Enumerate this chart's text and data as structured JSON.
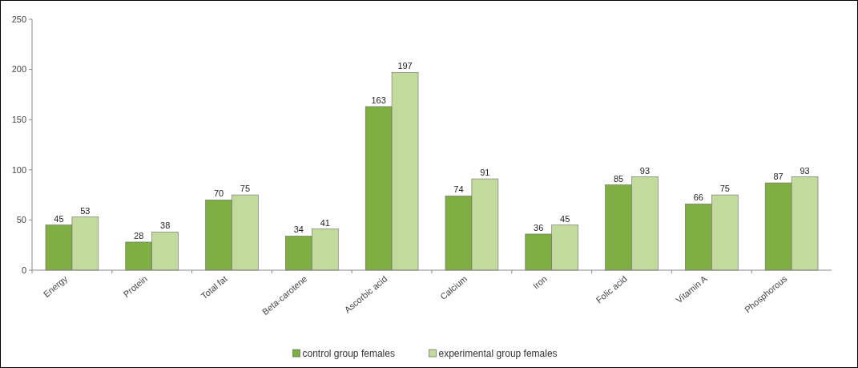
{
  "chart_data": {
    "type": "bar",
    "categories": [
      "Energy",
      "Protein",
      "Total fat",
      "Beta-carotene",
      "Ascorbic acid",
      "Calcium",
      "Iron",
      "Folic acid",
      "Vitamin A",
      "Phosphorous"
    ],
    "series": [
      {
        "name": "control group females",
        "color": "#7fae42",
        "values": [
          45,
          28,
          70,
          34,
          163,
          74,
          36,
          85,
          66,
          87
        ]
      },
      {
        "name": "experimental group females",
        "color": "#c2da9c",
        "values": [
          53,
          38,
          75,
          41,
          197,
          91,
          45,
          93,
          75,
          93
        ]
      }
    ],
    "ylim": [
      0,
      250
    ],
    "yticks": [
      0,
      50,
      100,
      150,
      200,
      250
    ],
    "data_labels": true,
    "legend": "bottom",
    "grid": false
  }
}
